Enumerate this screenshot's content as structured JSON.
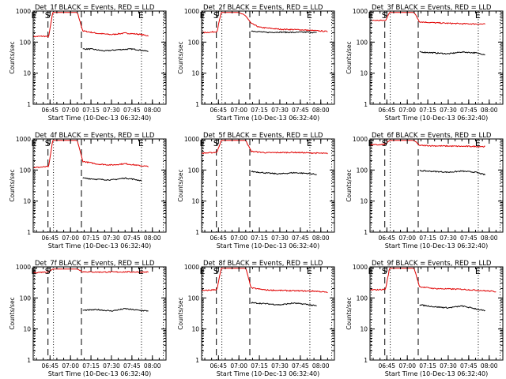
{
  "figure": {
    "xlabel": "Start Time (10-Dec-13 06:32:40)",
    "ylabel": "Counts/sec",
    "xticks": [
      "06:45",
      "07:00",
      "07:15",
      "07:30",
      "07:45",
      "08:00"
    ],
    "yticks": [
      "1",
      "10",
      "100",
      "1000"
    ],
    "colors": {
      "events": "#000000",
      "lld": "#e00000",
      "axes": "#000000",
      "background": "#ffffff"
    }
  },
  "chart_data": [
    {
      "type": "line",
      "title": "Det_1f BLACK = Events, RED = LLD",
      "log_y": true,
      "ylim": [
        1,
        1000
      ],
      "xlim": [
        "06:32:40",
        "08:10:00"
      ],
      "markers": [
        "E",
        "S",
        "E"
      ],
      "series": [
        {
          "name": "LLD",
          "color": "#e00000",
          "x": [
            "06:32:40",
            "06:40",
            "06:44",
            "06:47",
            "07:00",
            "07:05",
            "07:09",
            "07:20",
            "07:30",
            "07:40",
            "07:50",
            "07:57"
          ],
          "y": [
            150,
            155,
            150,
            900,
            900,
            900,
            230,
            190,
            175,
            195,
            180,
            160
          ]
        },
        {
          "name": "Events",
          "color": "#000000",
          "x": [
            "07:09",
            "07:15",
            "07:25",
            "07:35",
            "07:45",
            "07:52",
            "07:57"
          ],
          "y": [
            60,
            60,
            52,
            57,
            60,
            55,
            50
          ]
        }
      ]
    },
    {
      "type": "line",
      "title": "Det_2f BLACK = Events, RED = LLD",
      "log_y": true,
      "ylim": [
        1,
        1000
      ],
      "xlim": [
        "06:32:40",
        "08:10:00"
      ],
      "markers": [
        "E",
        "S",
        "E"
      ],
      "series": [
        {
          "name": "LLD",
          "color": "#e00000",
          "x": [
            "06:32:40",
            "06:40",
            "06:44",
            "06:47",
            "07:00",
            "07:05",
            "07:09",
            "07:15",
            "07:30",
            "07:45",
            "07:55",
            "08:05"
          ],
          "y": [
            200,
            210,
            220,
            900,
            900,
            700,
            400,
            300,
            260,
            250,
            235,
            220
          ]
        },
        {
          "name": "Events",
          "color": "#000000",
          "x": [
            "07:09",
            "07:20",
            "07:30",
            "07:40",
            "07:50",
            "07:57"
          ],
          "y": [
            230,
            205,
            210,
            205,
            210,
            200
          ]
        }
      ]
    },
    {
      "type": "line",
      "title": "Det_3f BLACK = Events, RED = LLD",
      "log_y": true,
      "ylim": [
        1,
        1000
      ],
      "xlim": [
        "06:32:40",
        "08:10:00"
      ],
      "markers": [
        "E",
        "S",
        "E"
      ],
      "series": [
        {
          "name": "LLD",
          "color": "#e00000",
          "x": [
            "06:32:40",
            "06:40",
            "06:44",
            "06:47",
            "07:00",
            "07:05",
            "07:09",
            "07:20",
            "07:40",
            "07:57"
          ],
          "y": [
            500,
            500,
            500,
            900,
            900,
            900,
            450,
            420,
            390,
            380
          ]
        },
        {
          "name": "Events",
          "color": "#000000",
          "x": [
            "07:09",
            "07:20",
            "07:30",
            "07:40",
            "07:50",
            "07:57"
          ],
          "y": [
            48,
            45,
            42,
            48,
            45,
            40
          ]
        }
      ]
    },
    {
      "type": "line",
      "title": "Det_4f BLACK = Events, RED = LLD",
      "log_y": true,
      "ylim": [
        1,
        1000
      ],
      "xlim": [
        "06:32:40",
        "08:10:00"
      ],
      "markers": [
        "E",
        "S",
        "E"
      ],
      "series": [
        {
          "name": "LLD",
          "color": "#e00000",
          "x": [
            "06:32:40",
            "06:40",
            "06:44",
            "06:47",
            "07:00",
            "07:05",
            "07:09",
            "07:20",
            "07:30",
            "07:40",
            "07:50",
            "07:57"
          ],
          "y": [
            120,
            125,
            130,
            900,
            900,
            900,
            190,
            155,
            145,
            160,
            140,
            130
          ]
        },
        {
          "name": "Events",
          "color": "#000000",
          "x": [
            "07:09",
            "07:20",
            "07:30",
            "07:40",
            "07:47",
            "07:52"
          ],
          "y": [
            55,
            50,
            48,
            55,
            50,
            45
          ]
        }
      ]
    },
    {
      "type": "line",
      "title": "Det_5f BLACK = Events, RED = LLD",
      "log_y": true,
      "ylim": [
        1,
        1000
      ],
      "xlim": [
        "06:32:40",
        "08:10:00"
      ],
      "markers": [
        "E",
        "S",
        "E"
      ],
      "series": [
        {
          "name": "LLD",
          "color": "#e00000",
          "x": [
            "06:32:40",
            "06:40",
            "06:44",
            "06:47",
            "07:00",
            "07:05",
            "07:09",
            "07:20",
            "07:40",
            "07:57",
            "08:05"
          ],
          "y": [
            350,
            360,
            380,
            900,
            900,
            900,
            400,
            360,
            370,
            350,
            340
          ]
        },
        {
          "name": "Events",
          "color": "#000000",
          "x": [
            "07:09",
            "07:20",
            "07:30",
            "07:40",
            "07:50",
            "07:57"
          ],
          "y": [
            90,
            80,
            75,
            82,
            78,
            72
          ]
        }
      ]
    },
    {
      "type": "line",
      "title": "Det_6f BLACK = Events, RED = LLD",
      "log_y": true,
      "ylim": [
        1,
        1000
      ],
      "xlim": [
        "06:32:40",
        "08:10:00"
      ],
      "markers": [
        "E",
        "S",
        "E"
      ],
      "series": [
        {
          "name": "LLD",
          "color": "#e00000",
          "x": [
            "06:32:40",
            "06:40",
            "06:44",
            "06:47",
            "07:00",
            "07:05",
            "07:09",
            "07:20",
            "07:40",
            "07:57"
          ],
          "y": [
            650,
            650,
            680,
            900,
            900,
            900,
            620,
            600,
            580,
            570
          ]
        },
        {
          "name": "Events",
          "color": "#000000",
          "x": [
            "07:09",
            "07:20",
            "07:30",
            "07:40",
            "07:50",
            "07:57"
          ],
          "y": [
            95,
            90,
            85,
            92,
            85,
            70
          ]
        }
      ]
    },
    {
      "type": "line",
      "title": "Det_7f BLACK = Events, RED = LLD",
      "log_y": true,
      "ylim": [
        1,
        1000
      ],
      "xlim": [
        "06:32:40",
        "08:10:00"
      ],
      "markers": [
        "E",
        "S",
        "E"
      ],
      "series": [
        {
          "name": "LLD",
          "color": "#e00000",
          "x": [
            "06:32:40",
            "06:40",
            "06:44",
            "06:47",
            "07:00",
            "07:05",
            "07:09",
            "07:20",
            "07:40",
            "07:57"
          ],
          "y": [
            650,
            680,
            700,
            850,
            850,
            850,
            700,
            680,
            690,
            680
          ]
        },
        {
          "name": "Events",
          "color": "#000000",
          "x": [
            "07:09",
            "07:20",
            "07:30",
            "07:40",
            "07:50",
            "07:57"
          ],
          "y": [
            40,
            42,
            38,
            45,
            40,
            38
          ]
        }
      ]
    },
    {
      "type": "line",
      "title": "Det_8f BLACK = Events, RED = LLD",
      "log_y": true,
      "ylim": [
        1,
        1000
      ],
      "xlim": [
        "06:32:40",
        "08:10:00"
      ],
      "markers": [
        "E",
        "S",
        "E"
      ],
      "series": [
        {
          "name": "LLD",
          "color": "#e00000",
          "x": [
            "06:32:40",
            "06:40",
            "06:44",
            "06:47",
            "07:00",
            "07:05",
            "07:09",
            "07:20",
            "07:40",
            "07:57",
            "08:05"
          ],
          "y": [
            170,
            180,
            190,
            900,
            900,
            900,
            210,
            180,
            170,
            165,
            150
          ]
        },
        {
          "name": "Events",
          "color": "#000000",
          "x": [
            "07:09",
            "07:20",
            "07:30",
            "07:40",
            "07:50",
            "07:57"
          ],
          "y": [
            70,
            65,
            60,
            68,
            62,
            55
          ]
        }
      ]
    },
    {
      "type": "line",
      "title": "Det_9f BLACK = Events, RED = LLD",
      "log_y": true,
      "ylim": [
        1,
        1000
      ],
      "xlim": [
        "06:32:40",
        "08:10:00"
      ],
      "markers": [
        "E",
        "S",
        "E"
      ],
      "series": [
        {
          "name": "LLD",
          "color": "#e00000",
          "x": [
            "06:32:40",
            "06:40",
            "06:44",
            "06:47",
            "07:00",
            "07:05",
            "07:09",
            "07:20",
            "07:40",
            "07:57",
            "08:05"
          ],
          "y": [
            180,
            185,
            190,
            900,
            900,
            900,
            230,
            200,
            190,
            170,
            160
          ]
        },
        {
          "name": "Events",
          "color": "#000000",
          "x": [
            "07:09",
            "07:20",
            "07:30",
            "07:40",
            "07:50",
            "07:57"
          ],
          "y": [
            60,
            52,
            48,
            55,
            45,
            38
          ]
        }
      ]
    }
  ]
}
